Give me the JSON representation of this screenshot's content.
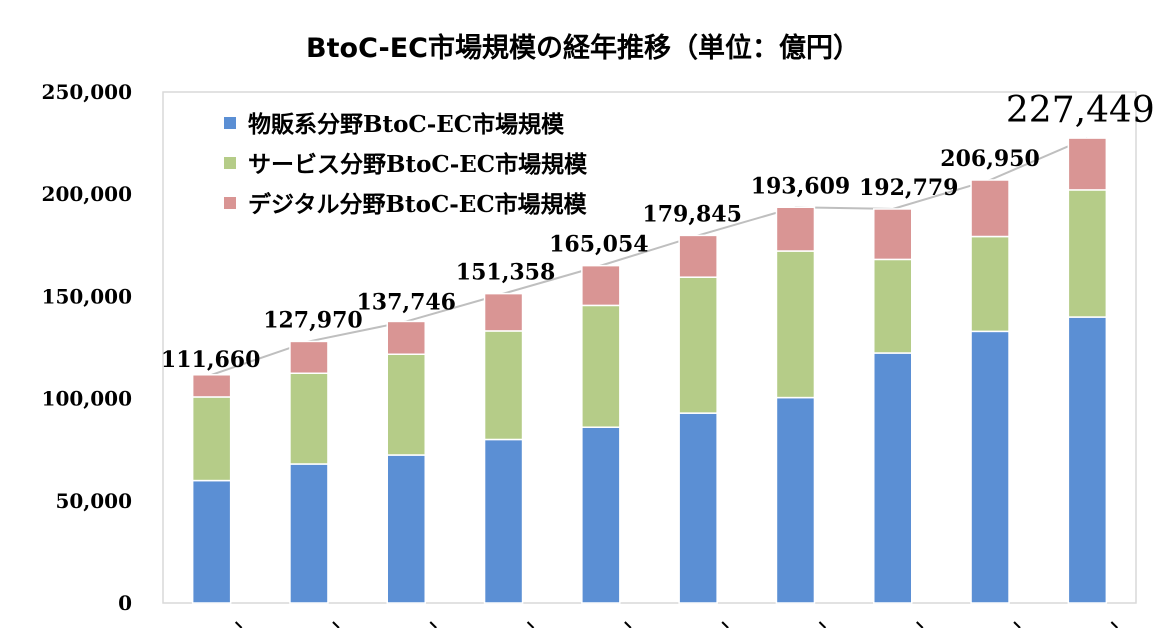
{
  "chart_data": {
    "type": "bar",
    "stacked": true,
    "title": "BtoC-EC市場規模の経年推移（単位：億円）",
    "xlabel": "",
    "ylabel": "",
    "ylim": [
      0,
      250000
    ],
    "yticks": [
      "0",
      "50,000",
      "100,000",
      "150,000",
      "200,000",
      "250,000"
    ],
    "categories": [
      "",
      "",
      "",
      "",
      "",
      "",
      "",
      "",
      "",
      ""
    ],
    "series": [
      {
        "name": "物販系分野BtoC-EC市場規模",
        "color": "#5b8fd4",
        "values": [
          59900,
          68000,
          72400,
          80000,
          86000,
          92900,
          100500,
          122300,
          132900,
          139900
        ]
      },
      {
        "name": "サービス分野BtoC-EC市場規模",
        "color": "#b5cc88",
        "values": [
          40900,
          44400,
          49300,
          53100,
          59600,
          66500,
          71700,
          45800,
          46400,
          62200
        ]
      },
      {
        "name": "デジタル分野BtoC-EC市場規模",
        "color": "#d99594",
        "values": [
          10860,
          15570,
          16046,
          18258,
          19454,
          20445,
          21409,
          24679,
          27650,
          25349
        ]
      }
    ],
    "totals": [
      111660,
      127970,
      137746,
      151358,
      165054,
      179845,
      193609,
      192779,
      206950,
      227449
    ],
    "total_labels": [
      "111,660",
      "127,970",
      "137,746",
      "151,358",
      "165,054",
      "179,845",
      "193,609",
      "192,779",
      "206,950",
      "227,449"
    ],
    "total_line_color": "#bfbfbf",
    "grid": false,
    "legend_position": "top-left"
  }
}
